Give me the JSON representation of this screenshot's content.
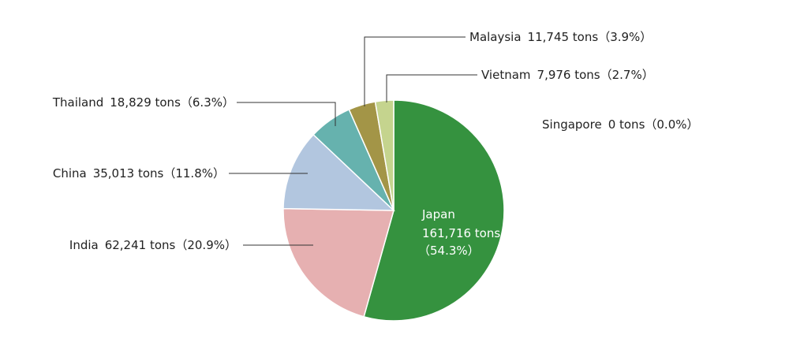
{
  "chart_data": {
    "type": "pie",
    "categories": [
      "Japan",
      "India",
      "China",
      "Thailand",
      "Malaysia",
      "Vietnam",
      "Singapore"
    ],
    "values": [
      161716,
      62241,
      35013,
      18829,
      11745,
      7976,
      0
    ],
    "value_labels": [
      "161,716 tons",
      "62,241 tons",
      "35,013 tons",
      "18,829 tons",
      "11,745 tons",
      "7,976 tons",
      "0 tons"
    ],
    "percent_labels": [
      "（54.3%）",
      "（20.9%）",
      "（11.8%）",
      "（6.3%）",
      "（3.9%）",
      "（2.7%）",
      "（0.0%）"
    ],
    "colors": [
      "#35923f",
      "#e6b0b1",
      "#b2c6df",
      "#66b2ae",
      "#a39547",
      "#c5d48e",
      "#cccccc"
    ]
  }
}
